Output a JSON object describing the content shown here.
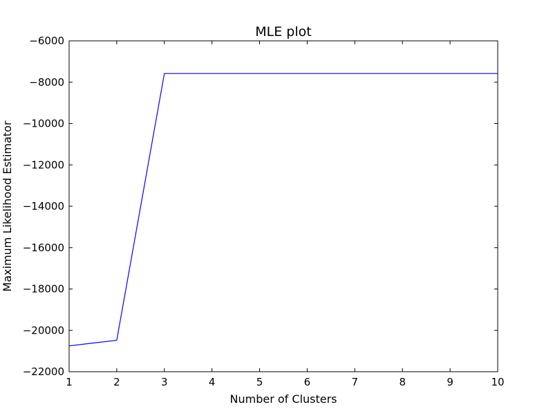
{
  "chart_data": {
    "type": "line",
    "title": "MLE plot",
    "xlabel": "Number of Clusters",
    "ylabel": "Maximum Likelihood Estimator",
    "x": [
      1,
      2,
      3,
      4,
      5,
      6,
      7,
      8,
      9,
      10
    ],
    "series": [
      {
        "values": [
          -20750,
          -20480,
          -7580,
          -7580,
          -7580,
          -7580,
          -7580,
          -7580,
          -7580,
          -7580
        ],
        "color": "#0000ff"
      }
    ],
    "xlim": [
      1,
      10
    ],
    "ylim": [
      -22000,
      -6000
    ],
    "xticks": [
      1,
      2,
      3,
      4,
      5,
      6,
      7,
      8,
      9,
      10
    ],
    "xtick_labels": [
      "1",
      "2",
      "3",
      "4",
      "5",
      "6",
      "7",
      "8",
      "9",
      "10"
    ],
    "yticks": [
      -6000,
      -8000,
      -10000,
      -12000,
      -14000,
      -16000,
      -18000,
      -20000,
      -22000
    ],
    "ytick_labels": [
      "−6000",
      "−8000",
      "−10000",
      "−12000",
      "−14000",
      "−16000",
      "−18000",
      "−20000",
      "−22000"
    ],
    "grid": false,
    "legend": "none"
  }
}
